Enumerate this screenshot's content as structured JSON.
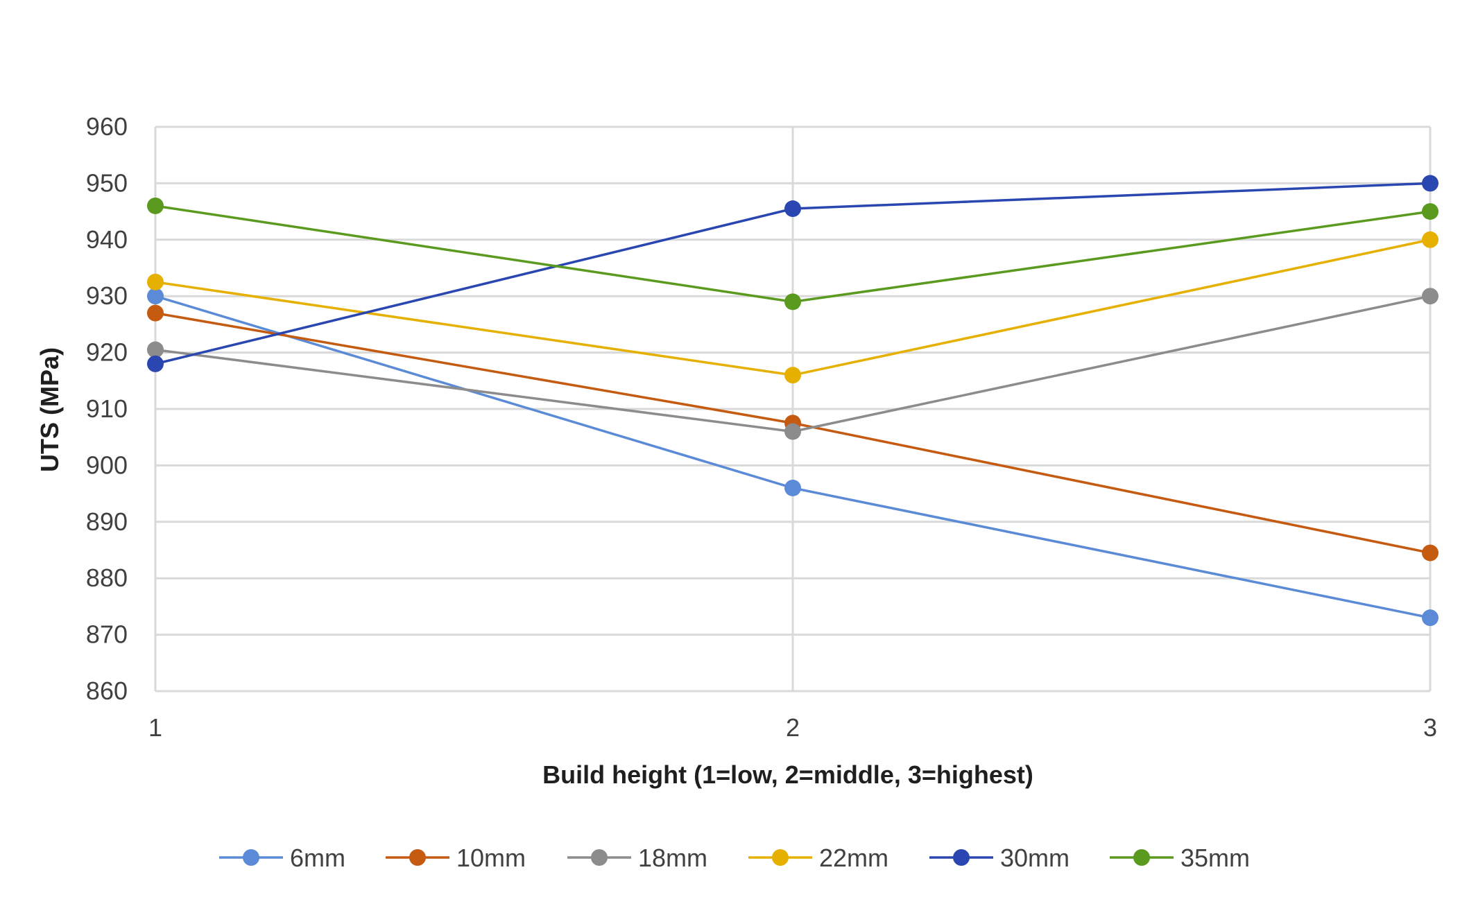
{
  "chart_data": {
    "type": "line",
    "title": "",
    "xlabel": "Build height (1=low, 2=middle, 3=highest)",
    "ylabel": "UTS (MPa)",
    "x": [
      1,
      2,
      3
    ],
    "x_tick_labels": [
      "1",
      "2",
      "3"
    ],
    "ylim": [
      860,
      960
    ],
    "y_ticks": [
      860,
      870,
      880,
      890,
      900,
      910,
      920,
      930,
      940,
      950,
      960
    ],
    "grid": true,
    "legend_position": "bottom",
    "series": [
      {
        "name": "6mm",
        "color": "#5b8bd6",
        "values": [
          930,
          896,
          873
        ]
      },
      {
        "name": "10mm",
        "color": "#c55a11",
        "values": [
          927,
          907.5,
          884.5
        ]
      },
      {
        "name": "18mm",
        "color": "#8c8c8c",
        "values": [
          920.5,
          906,
          930
        ]
      },
      {
        "name": "22mm",
        "color": "#e6b000",
        "values": [
          932.5,
          916,
          940
        ]
      },
      {
        "name": "30mm",
        "color": "#2a46b0",
        "values": [
          918,
          945.5,
          950
        ]
      },
      {
        "name": "35mm",
        "color": "#5a9a1f",
        "values": [
          946,
          929,
          945
        ]
      }
    ]
  }
}
